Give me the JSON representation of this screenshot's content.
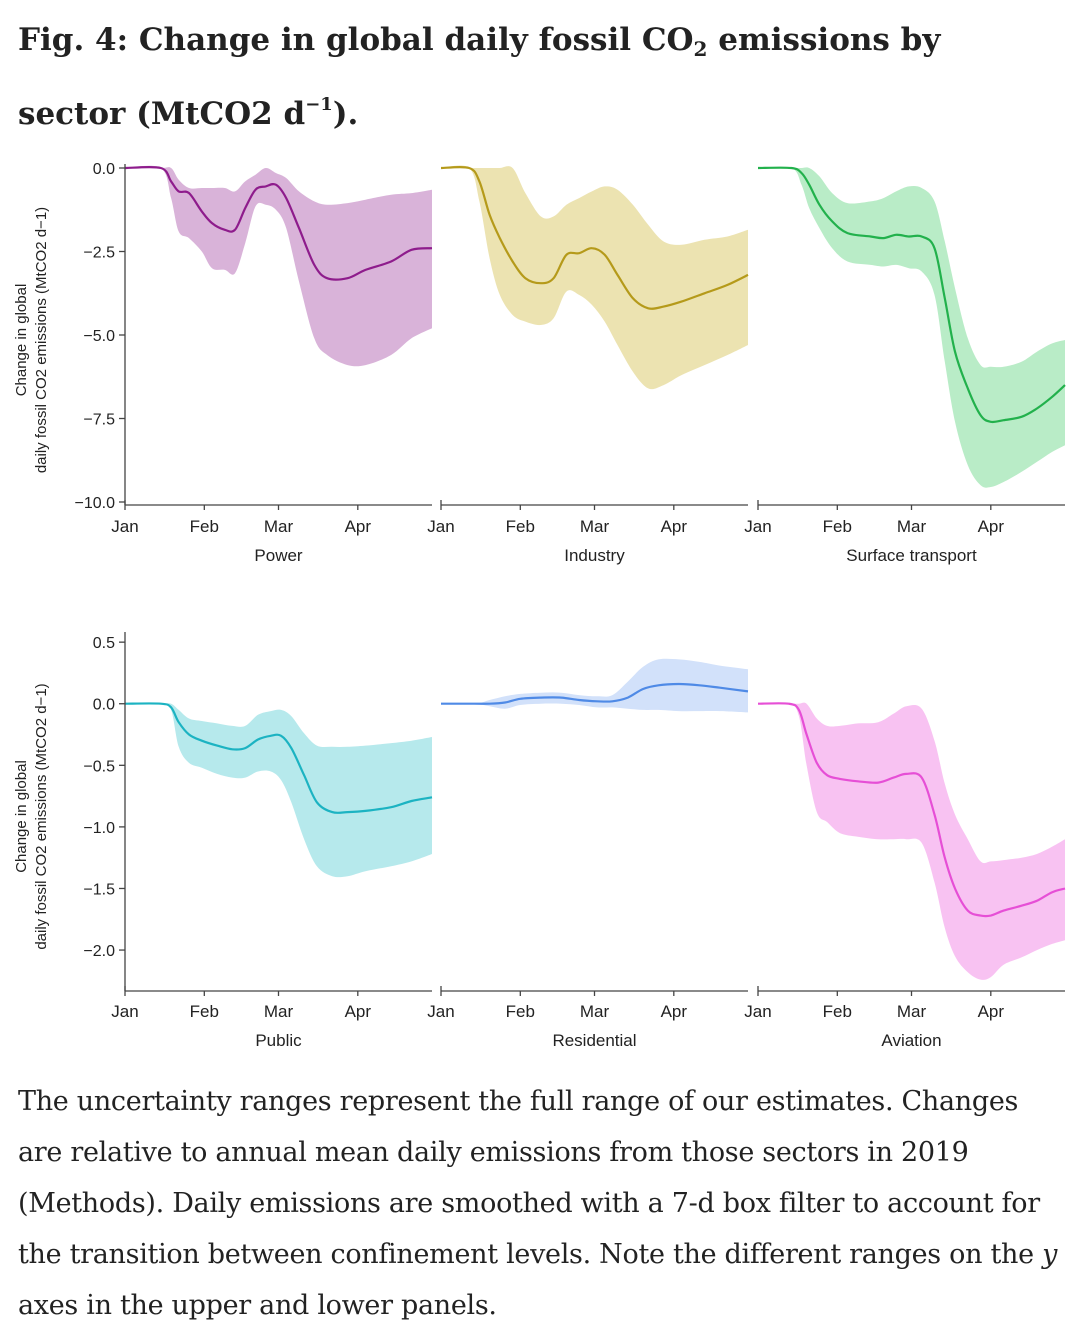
{
  "title": {
    "prefix": "Fig. 4: Change in global daily fossil CO",
    "sub": "2",
    "middle": " emissions by sector (MtCO2 d",
    "sup": "−1",
    "suffix": ")."
  },
  "caption": {
    "text": "The uncertainty ranges represent the full range of our estimates. Changes are relative to annual mean daily emissions from those sectors in 2019 (Methods). Daily emissions are smoothed with a 7-d box filter to account for the transition between confinement levels. Note the different ranges on the ",
    "italic": "y",
    "end": " axes in the upper and lower panels."
  },
  "chart_data": [
    {
      "type": "area",
      "row": 1,
      "title": "Power",
      "xlabel": "Power",
      "ylabel": "Change in global daily fossil CO2 emissions (MtCO2 d−1)",
      "x_ticks": [
        "Jan",
        "Feb",
        "Mar",
        "Apr"
      ],
      "x_tick_days": [
        1,
        32,
        61,
        92
      ],
      "ylim": [
        -10.0,
        0.0
      ],
      "y_ticks": [
        "0.0",
        "−2.5",
        "−5.0",
        "−7.5",
        "−10.0"
      ],
      "y_tick_values": [
        0.0,
        -2.5,
        -5.0,
        -7.5,
        -10.0
      ],
      "color": "#8e1c8c",
      "band_color": "#d9b3d9",
      "x": [
        1,
        15,
        19,
        22,
        26,
        31,
        35,
        40,
        44,
        48,
        52,
        56,
        60,
        64,
        69,
        75,
        80,
        88,
        95,
        105,
        113,
        121
      ],
      "series": [
        {
          "values": [
            0,
            0,
            -0.4,
            -0.7,
            -0.75,
            -1.3,
            -1.65,
            -1.85,
            -1.85,
            -1.2,
            -0.65,
            -0.55,
            -0.5,
            -0.9,
            -1.8,
            -2.9,
            -3.3,
            -3.3,
            -3.05,
            -2.8,
            -2.45,
            -2.4
          ],
          "lower": [
            0,
            0,
            -0.9,
            -1.9,
            -2.1,
            -2.5,
            -3.0,
            -3.05,
            -3.15,
            -2.25,
            -1.15,
            -1.1,
            -1.25,
            -1.8,
            -3.4,
            -5.1,
            -5.6,
            -5.9,
            -5.9,
            -5.6,
            -5.1,
            -4.8
          ],
          "upper": [
            0,
            0,
            0,
            -0.35,
            -0.6,
            -0.6,
            -0.6,
            -0.6,
            -0.7,
            -0.4,
            -0.2,
            0,
            -0.15,
            -0.3,
            -0.7,
            -1.0,
            -1.1,
            -1.05,
            -0.95,
            -0.8,
            -0.75,
            -0.65
          ]
        }
      ]
    },
    {
      "type": "area",
      "row": 1,
      "title": "Industry",
      "xlabel": "Industry",
      "x_ticks": [
        "Jan",
        "Feb",
        "Mar",
        "Apr"
      ],
      "x_tick_days": [
        1,
        32,
        61,
        92
      ],
      "ylim": [
        -10.0,
        0.0
      ],
      "color": "#b59a1a",
      "band_color": "#ece3b1",
      "x": [
        1,
        12,
        16,
        20,
        24,
        29,
        34,
        40,
        45,
        50,
        55,
        60,
        65,
        70,
        76,
        82,
        88,
        95,
        104,
        113,
        121
      ],
      "series": [
        {
          "values": [
            0,
            0,
            -0.4,
            -1.4,
            -2.1,
            -2.8,
            -3.3,
            -3.45,
            -3.3,
            -2.6,
            -2.55,
            -2.4,
            -2.6,
            -3.2,
            -3.9,
            -4.2,
            -4.15,
            -4.0,
            -3.75,
            -3.5,
            -3.2
          ],
          "lower": [
            0,
            0,
            -1.0,
            -2.7,
            -3.8,
            -4.4,
            -4.6,
            -4.7,
            -4.5,
            -3.7,
            -3.8,
            -4.1,
            -4.6,
            -5.3,
            -6.1,
            -6.6,
            -6.5,
            -6.2,
            -5.9,
            -5.6,
            -5.3
          ],
          "upper": [
            0,
            0,
            0,
            0,
            0,
            0,
            -0.75,
            -1.45,
            -1.45,
            -1.1,
            -0.9,
            -0.7,
            -0.55,
            -0.65,
            -1.1,
            -1.7,
            -2.2,
            -2.3,
            -2.15,
            -2.05,
            -1.85
          ]
        }
      ]
    },
    {
      "type": "area",
      "row": 1,
      "title": "Surface transport",
      "xlabel": "Surface transport",
      "x_ticks": [
        "Jan",
        "Feb",
        "Mar",
        "Apr"
      ],
      "x_tick_days": [
        1,
        32,
        61,
        92
      ],
      "ylim": [
        -10.0,
        0.0
      ],
      "color": "#22b14c",
      "band_color": "#b9ecc7",
      "x": [
        1,
        14,
        18,
        21,
        25,
        30,
        36,
        45,
        50,
        55,
        60,
        65,
        70,
        74,
        78,
        83,
        88,
        92,
        97,
        104,
        110,
        116,
        121
      ],
      "series": [
        {
          "values": [
            0,
            0,
            -0.15,
            -0.5,
            -1.1,
            -1.6,
            -1.95,
            -2.05,
            -2.1,
            -2.0,
            -2.05,
            -2.05,
            -2.4,
            -3.9,
            -5.5,
            -6.6,
            -7.4,
            -7.6,
            -7.55,
            -7.45,
            -7.2,
            -6.85,
            -6.5
          ],
          "lower": [
            0,
            0,
            -0.5,
            -1.2,
            -1.8,
            -2.4,
            -2.8,
            -2.9,
            -2.95,
            -2.9,
            -3.0,
            -3.1,
            -3.8,
            -5.8,
            -7.6,
            -8.9,
            -9.5,
            -9.55,
            -9.4,
            -9.1,
            -8.8,
            -8.5,
            -8.3
          ],
          "upper": [
            0,
            0,
            0,
            0,
            -0.25,
            -0.75,
            -1.05,
            -1.0,
            -0.9,
            -0.7,
            -0.55,
            -0.6,
            -1.0,
            -2.2,
            -3.6,
            -5.1,
            -5.9,
            -5.95,
            -5.95,
            -5.8,
            -5.5,
            -5.25,
            -5.15
          ]
        }
      ]
    },
    {
      "type": "area",
      "row": 2,
      "title": "Public",
      "xlabel": "Public",
      "ylabel": "Change in global daily fossil CO2 emissions (MtCO2 d−1)",
      "x_ticks": [
        "Jan",
        "Feb",
        "Mar",
        "Apr"
      ],
      "x_tick_days": [
        1,
        32,
        61,
        92
      ],
      "ylim": [
        -2.3,
        0.55
      ],
      "y_ticks": [
        "0.5",
        "0.0",
        "−0.5",
        "−1.0",
        "−1.5",
        "−2.0"
      ],
      "y_tick_values": [
        0.5,
        0.0,
        -0.5,
        -1.0,
        -1.5,
        -2.0
      ],
      "color": "#1cb3c2",
      "band_color": "#b6e9ec",
      "x": [
        1,
        15,
        19,
        22,
        26,
        31,
        37,
        43,
        48,
        53,
        58,
        62,
        66,
        71,
        76,
        82,
        88,
        95,
        105,
        113,
        121
      ],
      "series": [
        {
          "values": [
            0,
            0,
            -0.03,
            -0.15,
            -0.25,
            -0.3,
            -0.34,
            -0.37,
            -0.36,
            -0.29,
            -0.26,
            -0.26,
            -0.36,
            -0.58,
            -0.8,
            -0.88,
            -0.88,
            -0.87,
            -0.84,
            -0.79,
            -0.76
          ],
          "lower": [
            0,
            0,
            -0.05,
            -0.35,
            -0.48,
            -0.52,
            -0.57,
            -0.6,
            -0.6,
            -0.55,
            -0.55,
            -0.62,
            -0.8,
            -1.1,
            -1.32,
            -1.4,
            -1.4,
            -1.36,
            -1.32,
            -1.28,
            -1.22
          ],
          "upper": [
            0,
            0,
            0,
            -0.05,
            -0.12,
            -0.14,
            -0.16,
            -0.18,
            -0.18,
            -0.09,
            -0.06,
            -0.05,
            -0.1,
            -0.24,
            -0.34,
            -0.35,
            -0.35,
            -0.34,
            -0.32,
            -0.3,
            -0.27
          ]
        }
      ]
    },
    {
      "type": "area",
      "row": 2,
      "title": "Residential",
      "xlabel": "Residential",
      "x_ticks": [
        "Jan",
        "Feb",
        "Mar",
        "Apr"
      ],
      "x_tick_days": [
        1,
        32,
        61,
        92
      ],
      "ylim": [
        -2.3,
        0.55
      ],
      "color": "#4f8ae6",
      "band_color": "#d2e1fa",
      "x": [
        1,
        14,
        20,
        26,
        32,
        40,
        48,
        55,
        62,
        68,
        74,
        80,
        86,
        94,
        102,
        110,
        121
      ],
      "series": [
        {
          "values": [
            0,
            0,
            0,
            0.01,
            0.04,
            0.05,
            0.05,
            0.03,
            0.02,
            0.02,
            0.05,
            0.12,
            0.15,
            0.16,
            0.15,
            0.13,
            0.1
          ],
          "lower": [
            0,
            0,
            -0.02,
            -0.04,
            -0.01,
            0.0,
            0.0,
            -0.01,
            -0.03,
            -0.03,
            -0.04,
            -0.05,
            -0.05,
            -0.06,
            -0.06,
            -0.06,
            -0.07
          ],
          "upper": [
            0,
            0,
            0.03,
            0.06,
            0.08,
            0.09,
            0.09,
            0.07,
            0.06,
            0.07,
            0.18,
            0.3,
            0.36,
            0.36,
            0.34,
            0.31,
            0.28
          ]
        }
      ]
    },
    {
      "type": "area",
      "row": 2,
      "title": "Aviation",
      "xlabel": "Aviation",
      "x_ticks": [
        "Jan",
        "Feb",
        "Mar",
        "Apr"
      ],
      "x_tick_days": [
        1,
        32,
        61,
        92
      ],
      "ylim": [
        -2.3,
        0.55
      ],
      "color": "#e64fd6",
      "band_color": "#f8c2f2",
      "x": [
        1,
        13,
        17,
        20,
        24,
        28,
        33,
        40,
        48,
        54,
        59,
        65,
        70,
        74,
        78,
        83,
        88,
        92,
        97,
        104,
        110,
        116,
        121
      ],
      "series": [
        {
          "values": [
            0,
            0,
            -0.05,
            -0.25,
            -0.48,
            -0.58,
            -0.61,
            -0.63,
            -0.64,
            -0.6,
            -0.57,
            -0.6,
            -0.9,
            -1.25,
            -1.5,
            -1.68,
            -1.72,
            -1.72,
            -1.68,
            -1.64,
            -1.6,
            -1.53,
            -1.5
          ],
          "lower": [
            0,
            0,
            -0.1,
            -0.5,
            -0.88,
            -0.96,
            -1.05,
            -1.08,
            -1.1,
            -1.1,
            -1.1,
            -1.13,
            -1.45,
            -1.82,
            -2.05,
            -2.18,
            -2.24,
            -2.22,
            -2.12,
            -2.06,
            -2.0,
            -1.95,
            -1.92
          ],
          "upper": [
            0,
            0,
            0,
            0,
            -0.12,
            -0.18,
            -0.18,
            -0.16,
            -0.15,
            -0.08,
            -0.02,
            -0.04,
            -0.3,
            -0.65,
            -0.9,
            -1.1,
            -1.28,
            -1.28,
            -1.27,
            -1.25,
            -1.22,
            -1.16,
            -1.1
          ]
        }
      ]
    }
  ]
}
